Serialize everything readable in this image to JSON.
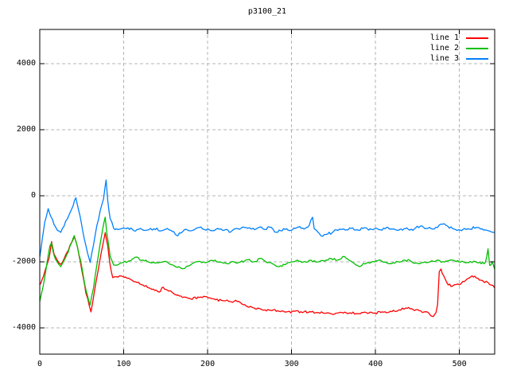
{
  "title": "p3100_21",
  "chart_data": {
    "type": "line",
    "title": "p3100_21",
    "xlabel": "",
    "ylabel": "",
    "xlim": [
      0,
      542
    ],
    "ylim": [
      -4800,
      5040
    ],
    "x_ticks": [
      0,
      100,
      200,
      300,
      400,
      500
    ],
    "y_ticks": [
      -4000,
      -2000,
      0,
      2000,
      4000
    ],
    "grid": true,
    "legend_position": "top-right",
    "background": "#ffffff",
    "grid_color": "#b4b4b4",
    "border_color": "#000000",
    "series": [
      {
        "name": "line 1",
        "color": "#ff0000",
        "noise": 40,
        "points": [
          [
            0,
            -2700
          ],
          [
            3,
            -2520
          ],
          [
            6,
            -2300
          ],
          [
            9,
            -2060
          ],
          [
            11,
            -1900
          ],
          [
            14,
            -1390
          ],
          [
            17,
            -1760
          ],
          [
            21,
            -1960
          ],
          [
            25,
            -2080
          ],
          [
            29,
            -1910
          ],
          [
            34,
            -1660
          ],
          [
            38,
            -1410
          ],
          [
            41,
            -1230
          ],
          [
            45,
            -1560
          ],
          [
            50,
            -2250
          ],
          [
            55,
            -2950
          ],
          [
            61,
            -3520
          ],
          [
            65,
            -2920
          ],
          [
            70,
            -2200
          ],
          [
            75,
            -1500
          ],
          [
            78,
            -1120
          ],
          [
            81,
            -1520
          ],
          [
            84,
            -2120
          ],
          [
            87,
            -2480
          ],
          [
            95,
            -2430
          ],
          [
            104,
            -2500
          ],
          [
            112,
            -2600
          ],
          [
            123,
            -2710
          ],
          [
            132,
            -2810
          ],
          [
            142,
            -2920
          ],
          [
            147,
            -2770
          ],
          [
            152,
            -2860
          ],
          [
            161,
            -2990
          ],
          [
            170,
            -3080
          ],
          [
            180,
            -3130
          ],
          [
            190,
            -3080
          ],
          [
            199,
            -3060
          ],
          [
            208,
            -3130
          ],
          [
            218,
            -3180
          ],
          [
            228,
            -3210
          ],
          [
            237,
            -3200
          ],
          [
            246,
            -3340
          ],
          [
            256,
            -3410
          ],
          [
            265,
            -3460
          ],
          [
            275,
            -3470
          ],
          [
            285,
            -3500
          ],
          [
            294,
            -3520
          ],
          [
            304,
            -3500
          ],
          [
            313,
            -3540
          ],
          [
            322,
            -3510
          ],
          [
            332,
            -3540
          ],
          [
            341,
            -3560
          ],
          [
            351,
            -3590
          ],
          [
            360,
            -3540
          ],
          [
            370,
            -3550
          ],
          [
            380,
            -3570
          ],
          [
            389,
            -3540
          ],
          [
            398,
            -3560
          ],
          [
            408,
            -3520
          ],
          [
            418,
            -3500
          ],
          [
            428,
            -3460
          ],
          [
            436,
            -3400
          ],
          [
            443,
            -3420
          ],
          [
            452,
            -3480
          ],
          [
            458,
            -3520
          ],
          [
            464,
            -3570
          ],
          [
            469,
            -3660
          ],
          [
            472,
            -3550
          ],
          [
            474,
            -3300
          ],
          [
            476,
            -2300
          ],
          [
            478,
            -2220
          ],
          [
            481,
            -2410
          ],
          [
            485,
            -2630
          ],
          [
            490,
            -2750
          ],
          [
            496,
            -2690
          ],
          [
            502,
            -2660
          ],
          [
            508,
            -2550
          ],
          [
            515,
            -2430
          ],
          [
            520,
            -2490
          ],
          [
            528,
            -2580
          ],
          [
            534,
            -2630
          ],
          [
            538,
            -2710
          ],
          [
            542,
            -2790
          ]
        ]
      },
      {
        "name": "line 2",
        "color": "#00c000",
        "noise": 45,
        "points": [
          [
            0,
            -3200
          ],
          [
            4,
            -2750
          ],
          [
            8,
            -2150
          ],
          [
            12,
            -1520
          ],
          [
            14,
            -1430
          ],
          [
            17,
            -1800
          ],
          [
            21,
            -2020
          ],
          [
            25,
            -2150
          ],
          [
            29,
            -1960
          ],
          [
            34,
            -1700
          ],
          [
            38,
            -1420
          ],
          [
            41,
            -1210
          ],
          [
            45,
            -1560
          ],
          [
            50,
            -2150
          ],
          [
            55,
            -2850
          ],
          [
            60,
            -3310
          ],
          [
            64,
            -2800
          ],
          [
            68,
            -2100
          ],
          [
            72,
            -1450
          ],
          [
            75,
            -1000
          ],
          [
            78,
            -650
          ],
          [
            80,
            -1150
          ],
          [
            84,
            -1850
          ],
          [
            88,
            -2100
          ],
          [
            96,
            -2040
          ],
          [
            105,
            -1990
          ],
          [
            114,
            -1860
          ],
          [
            121,
            -1960
          ],
          [
            130,
            -2010
          ],
          [
            139,
            -2030
          ],
          [
            148,
            -1990
          ],
          [
            157,
            -2090
          ],
          [
            164,
            -2170
          ],
          [
            169,
            -2210
          ],
          [
            176,
            -2130
          ],
          [
            183,
            -2040
          ],
          [
            191,
            -1990
          ],
          [
            199,
            -2020
          ],
          [
            207,
            -1970
          ],
          [
            215,
            -2010
          ],
          [
            223,
            -2060
          ],
          [
            231,
            -2000
          ],
          [
            239,
            -2010
          ],
          [
            248,
            -1940
          ],
          [
            255,
            -2000
          ],
          [
            262,
            -1900
          ],
          [
            269,
            -1990
          ],
          [
            277,
            -2060
          ],
          [
            285,
            -2150
          ],
          [
            292,
            -2090
          ],
          [
            300,
            -2000
          ],
          [
            307,
            -1950
          ],
          [
            314,
            -2010
          ],
          [
            321,
            -1960
          ],
          [
            329,
            -2010
          ],
          [
            338,
            -1970
          ],
          [
            347,
            -1900
          ],
          [
            355,
            -1950
          ],
          [
            363,
            -1840
          ],
          [
            369,
            -1960
          ],
          [
            375,
            -2060
          ],
          [
            382,
            -2140
          ],
          [
            389,
            -2050
          ],
          [
            397,
            -1990
          ],
          [
            404,
            -1950
          ],
          [
            411,
            -2010
          ],
          [
            419,
            -2060
          ],
          [
            427,
            -2000
          ],
          [
            435,
            -1950
          ],
          [
            443,
            -2000
          ],
          [
            451,
            -2060
          ],
          [
            459,
            -2010
          ],
          [
            467,
            -1970
          ],
          [
            475,
            -1950
          ],
          [
            482,
            -2010
          ],
          [
            489,
            -1950
          ],
          [
            496,
            -2000
          ],
          [
            503,
            -1980
          ],
          [
            511,
            -2030
          ],
          [
            519,
            -1990
          ],
          [
            526,
            -2060
          ],
          [
            531,
            -2010
          ],
          [
            534,
            -1610
          ],
          [
            536,
            -2110
          ],
          [
            539,
            -2000
          ],
          [
            542,
            -2230
          ]
        ]
      },
      {
        "name": "line 3",
        "color": "#0080ff",
        "noise": 50,
        "points": [
          [
            0,
            -1850
          ],
          [
            3,
            -1300
          ],
          [
            6,
            -800
          ],
          [
            10,
            -390
          ],
          [
            13,
            -620
          ],
          [
            17,
            -870
          ],
          [
            21,
            -1050
          ],
          [
            25,
            -1110
          ],
          [
            29,
            -920
          ],
          [
            33,
            -700
          ],
          [
            38,
            -400
          ],
          [
            43,
            -60
          ],
          [
            48,
            -620
          ],
          [
            53,
            -1300
          ],
          [
            57,
            -1750
          ],
          [
            60,
            -2020
          ],
          [
            64,
            -1500
          ],
          [
            68,
            -900
          ],
          [
            72,
            -450
          ],
          [
            76,
            -100
          ],
          [
            79,
            480
          ],
          [
            81,
            -150
          ],
          [
            84,
            -700
          ],
          [
            88,
            -990
          ],
          [
            95,
            -1010
          ],
          [
            105,
            -970
          ],
          [
            112,
            -1060
          ],
          [
            120,
            -990
          ],
          [
            128,
            -1040
          ],
          [
            136,
            -1000
          ],
          [
            145,
            -1060
          ],
          [
            152,
            -990
          ],
          [
            158,
            -1080
          ],
          [
            163,
            -1200
          ],
          [
            168,
            -1130
          ],
          [
            174,
            -1010
          ],
          [
            181,
            -1060
          ],
          [
            188,
            -970
          ],
          [
            196,
            -1020
          ],
          [
            204,
            -1060
          ],
          [
            212,
            -990
          ],
          [
            220,
            -1040
          ],
          [
            228,
            -1090
          ],
          [
            236,
            -1000
          ],
          [
            244,
            -960
          ],
          [
            252,
            -1010
          ],
          [
            260,
            -970
          ],
          [
            268,
            -1020
          ],
          [
            274,
            -950
          ],
          [
            280,
            -1100
          ],
          [
            287,
            -1060
          ],
          [
            294,
            -1000
          ],
          [
            301,
            -1030
          ],
          [
            308,
            -950
          ],
          [
            315,
            -1010
          ],
          [
            321,
            -900
          ],
          [
            325,
            -650
          ],
          [
            327,
            -1000
          ],
          [
            331,
            -1090
          ],
          [
            337,
            -1230
          ],
          [
            343,
            -1160
          ],
          [
            350,
            -1080
          ],
          [
            357,
            -1010
          ],
          [
            364,
            -1040
          ],
          [
            371,
            -990
          ],
          [
            378,
            -1030
          ],
          [
            385,
            -990
          ],
          [
            392,
            -1040
          ],
          [
            399,
            -1000
          ],
          [
            406,
            -1030
          ],
          [
            413,
            -960
          ],
          [
            420,
            -1010
          ],
          [
            427,
            -1050
          ],
          [
            434,
            -1000
          ],
          [
            441,
            -1040
          ],
          [
            448,
            -970
          ],
          [
            455,
            -910
          ],
          [
            461,
            -990
          ],
          [
            468,
            -1010
          ],
          [
            474,
            -960
          ],
          [
            480,
            -860
          ],
          [
            486,
            -920
          ],
          [
            492,
            -1000
          ],
          [
            499,
            -1030
          ],
          [
            506,
            -990
          ],
          [
            513,
            -1010
          ],
          [
            520,
            -960
          ],
          [
            527,
            -1000
          ],
          [
            534,
            -1060
          ],
          [
            542,
            -1110
          ]
        ]
      }
    ]
  }
}
